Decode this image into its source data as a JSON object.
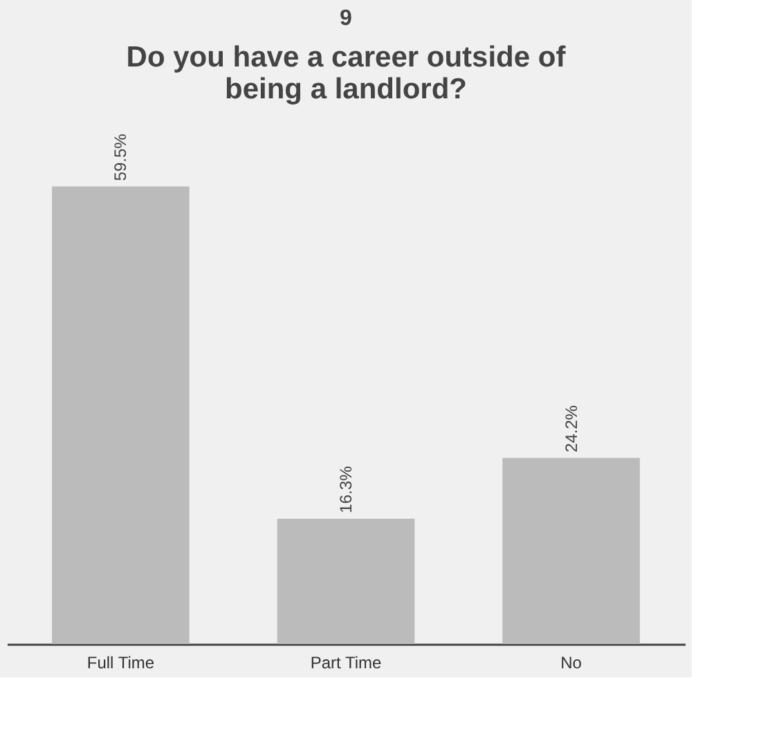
{
  "chart_data": {
    "type": "bar",
    "title": "9",
    "subtitle": "Do you have a career outside of being a landlord?",
    "categories": [
      "Full Time",
      "Part Time",
      "No"
    ],
    "values": [
      59.5,
      16.3,
      24.2
    ],
    "value_labels": [
      "59.5%",
      "16.3%",
      "24.2%"
    ],
    "color": "#bbbbbb",
    "grid": false
  }
}
